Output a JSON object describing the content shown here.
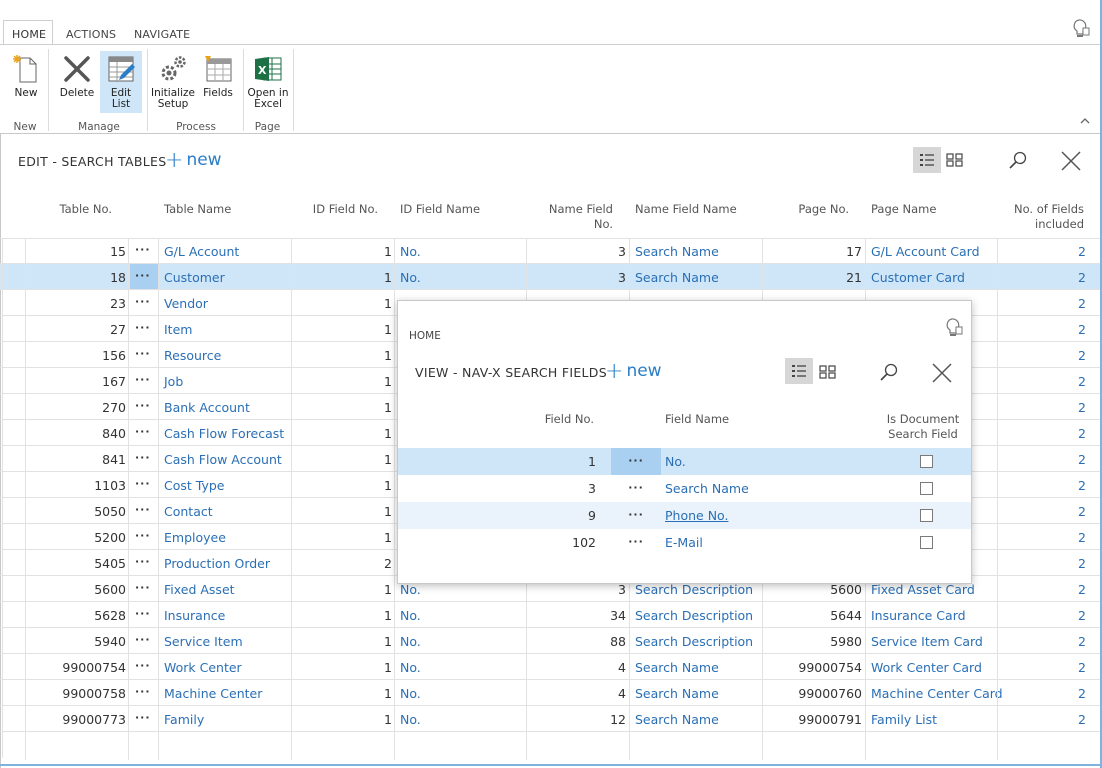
{
  "ribbon": {
    "tabs": [
      "HOME",
      "ACTIONS",
      "NAVIGATE"
    ],
    "buttons": {
      "new": "New",
      "delete": "Delete",
      "edit_list": "Edit List",
      "initialize_setup": "Initialize Setup",
      "fields": "Fields",
      "open_in_excel": "Open in Excel"
    },
    "groups": {
      "new": "New",
      "manage": "Manage",
      "process": "Process",
      "page": "Page"
    }
  },
  "page": {
    "title": "EDIT - SEARCH TABLES",
    "new_label": "new"
  },
  "columns": {
    "table_no": "Table No.",
    "table_name": "Table Name",
    "id_field_no": "ID Field No.",
    "id_field_name": "ID Field Name",
    "name_field_no_1": "Name Field",
    "name_field_no_2": "No.",
    "name_field_name": "Name Field Name",
    "page_no": "Page No.",
    "page_name": "Page Name",
    "no_fields_1": "No. of Fields",
    "no_fields_2": "included"
  },
  "rows": [
    {
      "table_no": "15",
      "table_name": "G/L Account",
      "id_no": "1",
      "id_name": "No.",
      "name_no": "3",
      "name_name": "Search Name",
      "page_no": "17",
      "page_name": "G/L Account Card",
      "fields": "2"
    },
    {
      "table_no": "18",
      "table_name": "Customer",
      "id_no": "1",
      "id_name": "No.",
      "name_no": "3",
      "name_name": "Search Name",
      "page_no": "21",
      "page_name": "Customer Card",
      "fields": "2"
    },
    {
      "table_no": "23",
      "table_name": "Vendor",
      "id_no": "1",
      "id_name": "",
      "name_no": "",
      "name_name": "",
      "page_no": "",
      "page_name": "",
      "fields": "2"
    },
    {
      "table_no": "27",
      "table_name": "Item",
      "id_no": "1",
      "id_name": "",
      "name_no": "",
      "name_name": "",
      "page_no": "",
      "page_name": "",
      "fields": "2"
    },
    {
      "table_no": "156",
      "table_name": "Resource",
      "id_no": "1",
      "id_name": "",
      "name_no": "",
      "name_name": "",
      "page_no": "",
      "page_name": "",
      "fields": "2"
    },
    {
      "table_no": "167",
      "table_name": "Job",
      "id_no": "1",
      "id_name": "",
      "name_no": "",
      "name_name": "",
      "page_no": "",
      "page_name": "",
      "fields": "2"
    },
    {
      "table_no": "270",
      "table_name": "Bank Account",
      "id_no": "1",
      "id_name": "",
      "name_no": "",
      "name_name": "",
      "page_no": "",
      "page_name": "rd",
      "fields": "2"
    },
    {
      "table_no": "840",
      "table_name": "Cash Flow Forecast",
      "id_no": "1",
      "id_name": "",
      "name_no": "",
      "name_name": "",
      "page_no": "",
      "page_name": "st...",
      "fields": "2"
    },
    {
      "table_no": "841",
      "table_name": "Cash Flow Account",
      "id_no": "1",
      "id_name": "",
      "name_no": "",
      "name_name": "",
      "page_no": "",
      "page_name": "nt...",
      "fields": "2"
    },
    {
      "table_no": "1103",
      "table_name": "Cost Type",
      "id_no": "1",
      "id_name": "",
      "name_no": "",
      "name_name": "",
      "page_no": "",
      "page_name": "",
      "fields": "2"
    },
    {
      "table_no": "5050",
      "table_name": "Contact",
      "id_no": "1",
      "id_name": "",
      "name_no": "",
      "name_name": "",
      "page_no": "",
      "page_name": "",
      "fields": "2"
    },
    {
      "table_no": "5200",
      "table_name": "Employee",
      "id_no": "1",
      "id_name": "",
      "name_no": "",
      "name_name": "",
      "page_no": "",
      "page_name": "",
      "fields": "2"
    },
    {
      "table_no": "5405",
      "table_name": "Production Order",
      "id_no": "2",
      "id_name": "",
      "name_no": "",
      "name_name": "",
      "page_no": "",
      "page_name": "List",
      "fields": "2"
    },
    {
      "table_no": "5600",
      "table_name": "Fixed Asset",
      "id_no": "1",
      "id_name": "No.",
      "name_no": "3",
      "name_name": "Search Description",
      "page_no": "5600",
      "page_name": "Fixed Asset Card",
      "fields": "2"
    },
    {
      "table_no": "5628",
      "table_name": "Insurance",
      "id_no": "1",
      "id_name": "No.",
      "name_no": "34",
      "name_name": "Search Description",
      "page_no": "5644",
      "page_name": "Insurance Card",
      "fields": "2"
    },
    {
      "table_no": "5940",
      "table_name": "Service Item",
      "id_no": "1",
      "id_name": "No.",
      "name_no": "88",
      "name_name": "Search Description",
      "page_no": "5980",
      "page_name": "Service Item Card",
      "fields": "2"
    },
    {
      "table_no": "99000754",
      "table_name": "Work Center",
      "id_no": "1",
      "id_name": "No.",
      "name_no": "4",
      "name_name": "Search Name",
      "page_no": "99000754",
      "page_name": "Work Center Card",
      "fields": "2"
    },
    {
      "table_no": "99000758",
      "table_name": "Machine Center",
      "id_no": "1",
      "id_name": "No.",
      "name_no": "4",
      "name_name": "Search Name",
      "page_no": "99000760",
      "page_name": "Machine Center Card",
      "fields": "2"
    },
    {
      "table_no": "99000773",
      "table_name": "Family",
      "id_no": "1",
      "id_name": "No.",
      "name_no": "12",
      "name_name": "Search Name",
      "page_no": "99000791",
      "page_name": "Family List",
      "fields": "2"
    }
  ],
  "popup": {
    "tab": "HOME",
    "title": "VIEW - NAV-X SEARCH FIELDS",
    "new_label": "new",
    "columns": {
      "field_no": "Field No.",
      "field_name": "Field Name",
      "is_doc_1": "Is Document",
      "is_doc_2": "Search Field"
    },
    "rows": [
      {
        "field_no": "1",
        "field_name": "No."
      },
      {
        "field_no": "3",
        "field_name": "Search Name"
      },
      {
        "field_no": "9",
        "field_name": "Phone No."
      },
      {
        "field_no": "102",
        "field_name": "E-Mail"
      }
    ]
  },
  "colors": {
    "accent": "#2a7dc7",
    "link": "#2a6fb5",
    "selection": "#cfe6f8"
  },
  "icons": [
    "new-icon",
    "delete-icon",
    "edit-list-icon",
    "initialize-setup-icon",
    "fields-icon",
    "excel-icon",
    "lightbulb-icon",
    "list-view-icon",
    "tile-view-icon",
    "search-icon",
    "close-icon",
    "chevron-up-icon"
  ]
}
